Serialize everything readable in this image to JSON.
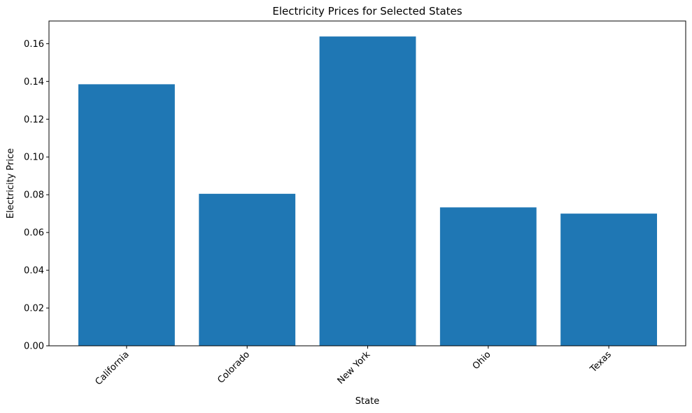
{
  "chart_data": {
    "type": "bar",
    "title": "Electricity Prices for Selected States",
    "xlabel": "State",
    "ylabel": "Electricity Price",
    "categories": [
      "California",
      "Colorado",
      "New York",
      "Ohio",
      "Texas"
    ],
    "values": [
      0.1385,
      0.0805,
      0.1638,
      0.0733,
      0.07
    ],
    "ylim": [
      0,
      0.172
    ],
    "yticks": [
      "0.00",
      "0.02",
      "0.04",
      "0.06",
      "0.08",
      "0.10",
      "0.12",
      "0.14",
      "0.16"
    ],
    "grid": false,
    "legend": "none",
    "bar_color": "#1f77b4",
    "xtick_rotation_deg": 45
  }
}
